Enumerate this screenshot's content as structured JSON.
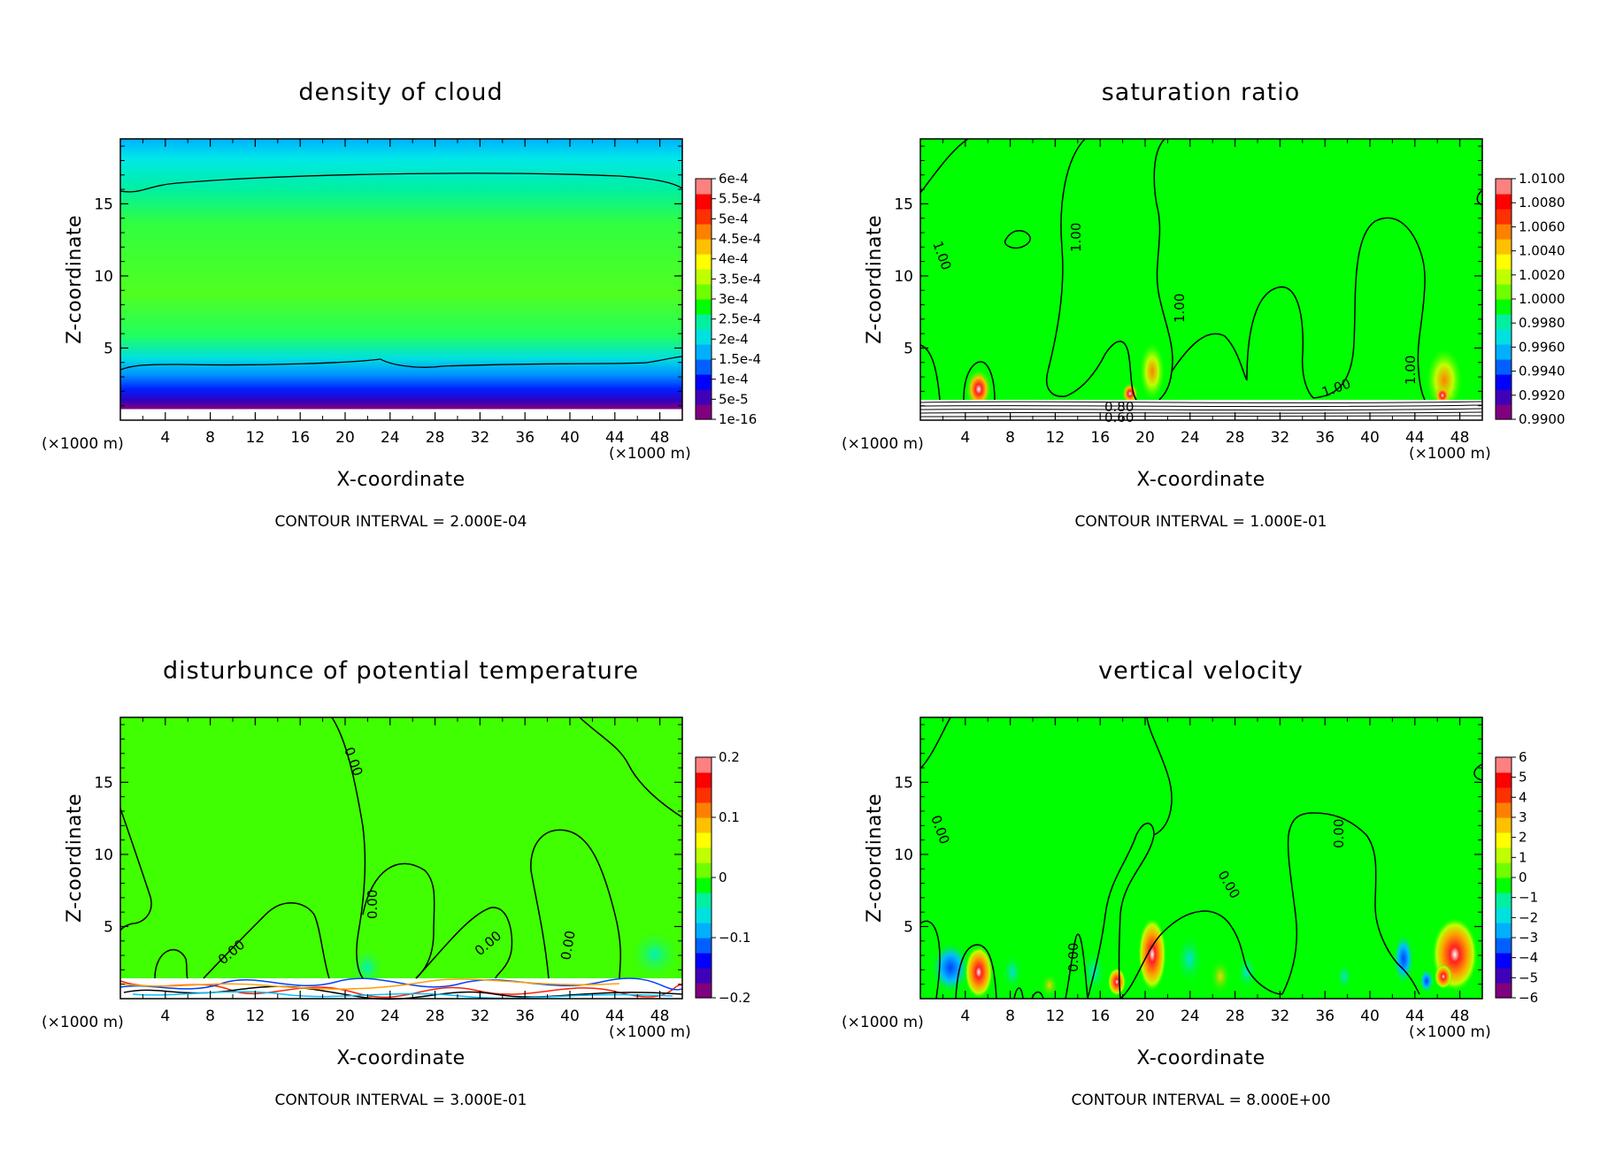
{
  "figure": {
    "colorbar_colors": [
      "#800080",
      "#3f00b7",
      "#0000ff",
      "#0060ff",
      "#00b0ff",
      "#00e0e0",
      "#00f0a0",
      "#00ff00",
      "#70ff00",
      "#c0ff00",
      "#ffff00",
      "#ffc000",
      "#ff8000",
      "#ff3000",
      "#ff0000",
      "#ff8080"
    ]
  },
  "panels": [
    {
      "title": "density of cloud",
      "xlabel": "X-coordinate",
      "ylabel": "Z-coordinate",
      "x_unit_left": "(×1000 m)",
      "x_unit_right": "(×1000 m)",
      "contour_interval": "CONTOUR INTERVAL = 2.000E-04",
      "colorbar_labels": [
        "6e-4",
        "5.5e-4",
        "5e-4",
        "4.5e-4",
        "4e-4",
        "3.5e-4",
        "3e-4",
        "2.5e-4",
        "2e-4",
        "1.5e-4",
        "1e-4",
        "5e-5",
        "1e-16"
      ],
      "contour_labels": []
    },
    {
      "title": "saturation ratio",
      "xlabel": "X-coordinate",
      "ylabel": "Z-coordinate",
      "x_unit_left": "(×1000 m)",
      "x_unit_right": "(×1000 m)",
      "contour_interval": "CONTOUR INTERVAL = 1.000E-01",
      "colorbar_labels": [
        "1.0100",
        "1.0080",
        "1.0060",
        "1.0040",
        "1.0020",
        "1.0000",
        "0.9980",
        "0.9960",
        "0.9940",
        "0.9920",
        "0.9900"
      ],
      "contour_labels": [
        "1.00",
        "1.00",
        "1.00",
        "1.00",
        "1.00",
        "0.80",
        "0.60"
      ]
    },
    {
      "title": "disturbunce of potential temperature",
      "xlabel": "X-coordinate",
      "ylabel": "Z-coordinate",
      "x_unit_left": "(×1000 m)",
      "x_unit_right": "(×1000 m)",
      "contour_interval": "CONTOUR INTERVAL = 3.000E-01",
      "colorbar_labels": [
        "0.2",
        "0.1",
        "0",
        "−0.1",
        "−0.2"
      ],
      "contour_labels": [
        "0.00",
        "0.00",
        "0.00",
        "0.00",
        "0.00"
      ]
    },
    {
      "title": "vertical velocity",
      "xlabel": "X-coordinate",
      "ylabel": "Z-coordinate",
      "x_unit_left": "(×1000 m)",
      "x_unit_right": "(×1000 m)",
      "contour_interval": "CONTOUR INTERVAL = 8.000E+00",
      "colorbar_labels": [
        "6",
        "5",
        "4",
        "3",
        "2",
        "1",
        "0",
        "−1",
        "−2",
        "−3",
        "−4",
        "−5",
        "−6"
      ],
      "contour_labels": [
        "0.00",
        "0.00",
        "0.00",
        "0.00"
      ]
    }
  ],
  "chart_data": [
    {
      "type": "heatmap",
      "title": "density of cloud",
      "xlabel": "X-coordinate",
      "ylabel": "Z-coordinate",
      "x_ticks": [
        4,
        8,
        12,
        16,
        20,
        24,
        28,
        32,
        36,
        40,
        44,
        48
      ],
      "y_ticks": [
        5,
        10,
        15
      ],
      "xlim": [
        0,
        50
      ],
      "ylim": [
        0,
        19.5
      ],
      "colorbar": [
        "6e-4",
        "5.5e-4",
        "5e-4",
        "4.5e-4",
        "4e-4",
        "3.5e-4",
        "3e-4",
        "2.5e-4",
        "2e-4",
        "1.5e-4",
        "1e-4",
        "5e-5",
        "1e-16"
      ],
      "contour_interval": 0.0002
    },
    {
      "type": "heatmap",
      "title": "saturation ratio",
      "xlabel": "X-coordinate",
      "ylabel": "Z-coordinate",
      "x_ticks": [
        4,
        8,
        12,
        16,
        20,
        24,
        28,
        32,
        36,
        40,
        44,
        48
      ],
      "y_ticks": [
        5,
        10,
        15
      ],
      "xlim": [
        0,
        50
      ],
      "ylim": [
        0,
        19.5
      ],
      "colorbar": [
        "1.0100",
        "1.0080",
        "1.0060",
        "1.0040",
        "1.0020",
        "1.0000",
        "0.9980",
        "0.9960",
        "0.9940",
        "0.9920",
        "0.9900"
      ],
      "contour_interval": 0.1
    },
    {
      "type": "heatmap",
      "title": "disturbunce of potential temperature",
      "xlabel": "X-coordinate",
      "ylabel": "Z-coordinate",
      "x_ticks": [
        4,
        8,
        12,
        16,
        20,
        24,
        28,
        32,
        36,
        40,
        44,
        48
      ],
      "y_ticks": [
        5,
        10,
        15
      ],
      "xlim": [
        0,
        50
      ],
      "ylim": [
        0,
        19.5
      ],
      "colorbar": [
        "0.2",
        "0.1",
        "0",
        "−0.1",
        "−0.2"
      ],
      "contour_interval": 0.3
    },
    {
      "type": "heatmap",
      "title": "vertical velocity",
      "xlabel": "X-coordinate",
      "ylabel": "Z-coordinate",
      "x_ticks": [
        4,
        8,
        12,
        16,
        20,
        24,
        28,
        32,
        36,
        40,
        44,
        48
      ],
      "y_ticks": [
        5,
        10,
        15
      ],
      "xlim": [
        0,
        50
      ],
      "ylim": [
        0,
        19.5
      ],
      "colorbar": [
        "6",
        "5",
        "4",
        "3",
        "2",
        "1",
        "0",
        "−1",
        "−2",
        "−3",
        "−4",
        "−5",
        "−6"
      ],
      "contour_interval": 8.0
    }
  ]
}
